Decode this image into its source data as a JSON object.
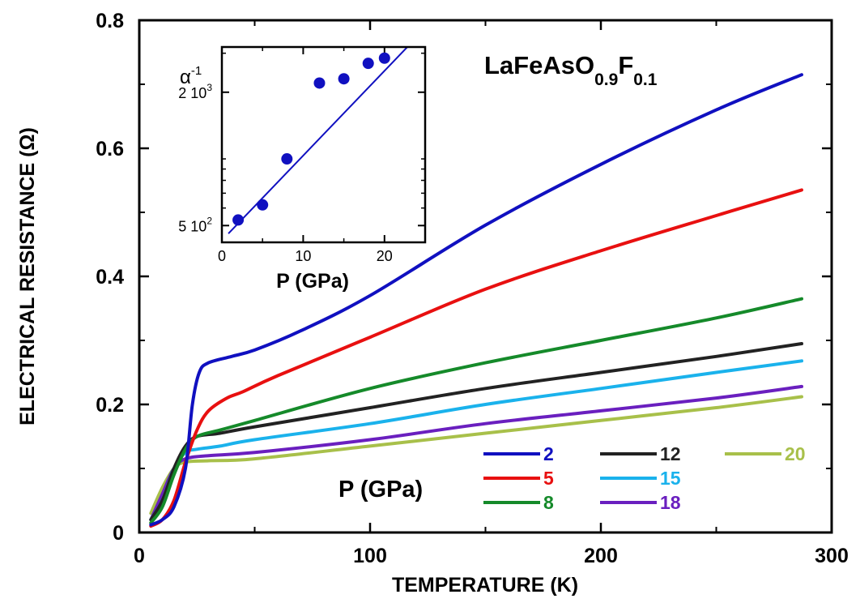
{
  "chart_data": [
    {
      "type": "line",
      "xlabel": "TEMPERATURE (K)",
      "ylabel": "ELECTRICAL RESISTANCE (Ω)",
      "xlim": [
        0,
        300
      ],
      "ylim": [
        0,
        0.8
      ],
      "xticks": [
        0,
        100,
        200,
        300
      ],
      "xtick_labels": [
        "0",
        "100",
        "200",
        "300"
      ],
      "yticks": [
        0,
        0.2,
        0.4,
        0.6,
        0.8
      ],
      "ytick_labels": [
        "0",
        "0.2",
        "0.4",
        "0.6",
        "0.8"
      ],
      "grid": false,
      "annotation": {
        "compound_main": "LaFeAsO",
        "sub1": "0.9",
        "mid": "F",
        "sub2": "0.1"
      },
      "legend": {
        "title": "P (GPa)",
        "placement": "bottom-right"
      },
      "series": [
        {
          "name": "2",
          "color": "#1010c0",
          "points": [
            [
              5,
              0.012
            ],
            [
              10,
              0.02
            ],
            [
              15,
              0.04
            ],
            [
              20,
              0.1
            ],
            [
              23,
              0.2
            ],
            [
              26,
              0.25
            ],
            [
              30,
              0.265
            ],
            [
              40,
              0.275
            ],
            [
              50,
              0.285
            ],
            [
              70,
              0.315
            ],
            [
              100,
              0.37
            ],
            [
              150,
              0.48
            ],
            [
              200,
              0.575
            ],
            [
              250,
              0.66
            ],
            [
              287,
              0.715
            ]
          ]
        },
        {
          "name": "5",
          "color": "#e81010",
          "points": [
            [
              5,
              0.01
            ],
            [
              10,
              0.02
            ],
            [
              15,
              0.05
            ],
            [
              20,
              0.11
            ],
            [
              25,
              0.16
            ],
            [
              30,
              0.19
            ],
            [
              38,
              0.21
            ],
            [
              45,
              0.22
            ],
            [
              60,
              0.245
            ],
            [
              100,
              0.305
            ],
            [
              150,
              0.38
            ],
            [
              200,
              0.44
            ],
            [
              250,
              0.495
            ],
            [
              287,
              0.535
            ]
          ]
        },
        {
          "name": "8",
          "color": "#158a2a",
          "points": [
            [
              5,
              0.015
            ],
            [
              10,
              0.04
            ],
            [
              15,
              0.09
            ],
            [
              20,
              0.13
            ],
            [
              25,
              0.15
            ],
            [
              35,
              0.16
            ],
            [
              50,
              0.175
            ],
            [
              100,
              0.225
            ],
            [
              150,
              0.265
            ],
            [
              200,
              0.3
            ],
            [
              250,
              0.335
            ],
            [
              287,
              0.365
            ]
          ]
        },
        {
          "name": "12",
          "color": "#222222",
          "points": [
            [
              5,
              0.02
            ],
            [
              10,
              0.05
            ],
            [
              15,
              0.1
            ],
            [
              20,
              0.135
            ],
            [
              25,
              0.15
            ],
            [
              35,
              0.155
            ],
            [
              50,
              0.165
            ],
            [
              100,
              0.195
            ],
            [
              150,
              0.225
            ],
            [
              200,
              0.25
            ],
            [
              250,
              0.275
            ],
            [
              287,
              0.295
            ]
          ]
        },
        {
          "name": "15",
          "color": "#1ab2ec",
          "points": [
            [
              5,
              0.02
            ],
            [
              10,
              0.05
            ],
            [
              15,
              0.1
            ],
            [
              20,
              0.125
            ],
            [
              25,
              0.13
            ],
            [
              35,
              0.135
            ],
            [
              50,
              0.145
            ],
            [
              100,
              0.17
            ],
            [
              150,
              0.2
            ],
            [
              200,
              0.225
            ],
            [
              250,
              0.25
            ],
            [
              287,
              0.268
            ]
          ]
        },
        {
          "name": "18",
          "color": "#6a1fbf",
          "points": [
            [
              5,
              0.02
            ],
            [
              10,
              0.06
            ],
            [
              15,
              0.1
            ],
            [
              20,
              0.115
            ],
            [
              30,
              0.12
            ],
            [
              50,
              0.125
            ],
            [
              100,
              0.145
            ],
            [
              150,
              0.17
            ],
            [
              200,
              0.19
            ],
            [
              250,
              0.21
            ],
            [
              287,
              0.228
            ]
          ]
        },
        {
          "name": "20",
          "color": "#a8c04a",
          "points": [
            [
              5,
              0.03
            ],
            [
              10,
              0.07
            ],
            [
              15,
              0.1
            ],
            [
              20,
              0.11
            ],
            [
              30,
              0.112
            ],
            [
              50,
              0.115
            ],
            [
              100,
              0.135
            ],
            [
              150,
              0.155
            ],
            [
              200,
              0.175
            ],
            [
              250,
              0.195
            ],
            [
              287,
              0.212
            ]
          ]
        }
      ]
    },
    {
      "type": "scatter",
      "xlabel": "P (GPa)",
      "ylabel": "α",
      "ylabel_sup": "-1",
      "xlim": [
        0,
        25
      ],
      "yscale": "log",
      "ylim": [
        420,
        3200
      ],
      "xticks": [
        0,
        10,
        20
      ],
      "xtick_labels": [
        "0",
        "10",
        "20"
      ],
      "yticks": [
        500,
        2000
      ],
      "ytick_labels": [
        {
          "base": "5 10",
          "exp": "2"
        },
        {
          "base": "2 10",
          "exp": "3"
        }
      ],
      "grid": false,
      "color": "#1010c0",
      "points": [
        [
          2,
          530
        ],
        [
          5,
          620
        ],
        [
          8,
          1000
        ],
        [
          12,
          2200
        ],
        [
          15,
          2300
        ],
        [
          18,
          2700
        ],
        [
          20,
          2850
        ]
      ],
      "fit_line": [
        [
          0.8,
          460
        ],
        [
          23.5,
          3400
        ]
      ]
    }
  ]
}
